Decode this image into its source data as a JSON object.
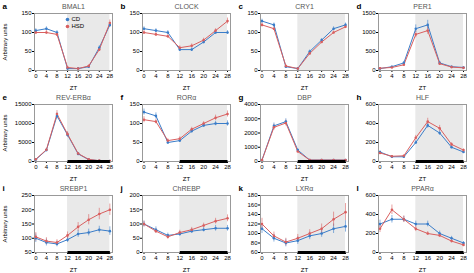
{
  "chart_data": [
    {
      "type": "line",
      "title": "BMAL1",
      "annotations": [
        "a"
      ],
      "xlabel": "ZT",
      "ylabel": "Arbitrary units",
      "x": [
        0,
        4,
        8,
        12,
        16,
        20,
        24,
        28
      ],
      "xlim": [
        -0.5,
        29
      ],
      "xticks": [
        0,
        4,
        8,
        12,
        16,
        20,
        24,
        28
      ],
      "ylim": [
        0,
        150
      ],
      "yticks": [
        0,
        50,
        100,
        150
      ],
      "shade": [
        12,
        28
      ],
      "legend": "upper center",
      "series": [
        {
          "name": "CD",
          "color": "#3a7dc9",
          "marker": "circle",
          "values": [
            105,
            110,
            100,
            5,
            5,
            10,
            60,
            120
          ],
          "error": [
            5,
            5,
            5,
            2,
            2,
            3,
            5,
            7
          ]
        },
        {
          "name": "HSD",
          "color": "#d95f5f",
          "marker": "circle",
          "values": [
            100,
            100,
            95,
            8,
            5,
            12,
            55,
            125
          ],
          "error": [
            5,
            5,
            5,
            2,
            2,
            3,
            5,
            8
          ]
        }
      ]
    },
    {
      "type": "line",
      "title": "CLOCK",
      "annotations": [
        "b"
      ],
      "xlabel": "ZT",
      "x": [
        0,
        4,
        8,
        12,
        16,
        20,
        24,
        28
      ],
      "xlim": [
        -0.5,
        29
      ],
      "xticks": [
        0,
        4,
        8,
        12,
        16,
        20,
        24,
        28
      ],
      "ylim": [
        0,
        150
      ],
      "yticks": [
        0,
        50,
        100,
        150
      ],
      "shade": [
        12,
        28
      ],
      "series": [
        {
          "name": "CD",
          "color": "#3a7dc9",
          "marker": "circle",
          "values": [
            110,
            105,
            100,
            55,
            55,
            75,
            100,
            100
          ],
          "error": [
            5,
            5,
            5,
            5,
            5,
            5,
            5,
            5
          ]
        },
        {
          "name": "HSD",
          "color": "#d95f5f",
          "marker": "circle",
          "values": [
            100,
            95,
            90,
            60,
            65,
            80,
            105,
            130
          ],
          "error": [
            5,
            5,
            5,
            5,
            5,
            5,
            5,
            8
          ]
        }
      ]
    },
    {
      "type": "line",
      "title": "CRY1",
      "annotations": [
        "c"
      ],
      "xlabel": "ZT",
      "x": [
        0,
        4,
        8,
        12,
        16,
        20,
        24,
        28
      ],
      "xlim": [
        -0.5,
        29
      ],
      "xticks": [
        0,
        4,
        8,
        12,
        16,
        20,
        24,
        28
      ],
      "ylim": [
        0,
        150
      ],
      "yticks": [
        0,
        50,
        100,
        150
      ],
      "shade": [
        12,
        28
      ],
      "series": [
        {
          "name": "CD",
          "color": "#3a7dc9",
          "marker": "circle",
          "values": [
            130,
            120,
            10,
            5,
            50,
            80,
            110,
            120
          ],
          "error": [
            5,
            5,
            3,
            2,
            4,
            4,
            5,
            5
          ]
        },
        {
          "name": "HSD",
          "color": "#d95f5f",
          "marker": "circle",
          "values": [
            120,
            110,
            12,
            5,
            45,
            75,
            100,
            115
          ],
          "error": [
            5,
            5,
            3,
            2,
            4,
            4,
            4,
            5
          ]
        }
      ]
    },
    {
      "type": "line",
      "title": "PER1",
      "annotations": [
        "d"
      ],
      "xlabel": "ZT",
      "x": [
        0,
        4,
        8,
        12,
        16,
        20,
        24,
        28
      ],
      "xlim": [
        -0.5,
        29
      ],
      "xticks": [
        0,
        4,
        8,
        12,
        16,
        20,
        24,
        28
      ],
      "ylim": [
        0,
        1500
      ],
      "yticks": [
        0,
        500,
        1000,
        1500
      ],
      "shade": [
        12,
        28
      ],
      "series": [
        {
          "name": "CD",
          "color": "#3a7dc9",
          "marker": "circle",
          "values": [
            50,
            100,
            200,
            1100,
            1200,
            200,
            100,
            80
          ],
          "error": [
            10,
            20,
            40,
            100,
            120,
            40,
            20,
            15
          ]
        },
        {
          "name": "HSD",
          "color": "#d95f5f",
          "marker": "circle",
          "values": [
            60,
            80,
            150,
            950,
            1050,
            180,
            90,
            70
          ],
          "error": [
            10,
            15,
            30,
            90,
            100,
            35,
            15,
            12
          ]
        }
      ]
    },
    {
      "type": "line",
      "title": "REV-ERBα",
      "annotations": [
        "e"
      ],
      "xlabel": "ZT",
      "ylabel": "Arbitrary units",
      "x": [
        0,
        4,
        8,
        12,
        16,
        20,
        24,
        28
      ],
      "xlim": [
        -0.5,
        29
      ],
      "xticks": [
        0,
        4,
        8,
        12,
        16,
        20,
        24,
        28
      ],
      "ylim": [
        0,
        15000
      ],
      "yticks": [
        0,
        5000,
        10000,
        15000
      ],
      "shade": [
        12,
        28
      ],
      "dark_bar": [
        12,
        28
      ],
      "series": [
        {
          "name": "CD",
          "color": "#3a7dc9",
          "marker": "circle",
          "values": [
            500,
            3000,
            12000,
            7000,
            2000,
            500,
            200,
            100
          ],
          "error": [
            100,
            300,
            800,
            600,
            200,
            100,
            50,
            30
          ]
        },
        {
          "name": "HSD",
          "color": "#d95f5f",
          "marker": "circle",
          "values": [
            600,
            3100,
            12500,
            7200,
            2100,
            550,
            220,
            110
          ],
          "error": [
            100,
            300,
            900,
            650,
            200,
            100,
            50,
            30
          ]
        }
      ]
    },
    {
      "type": "line",
      "title": "RORα",
      "annotations": [
        "f"
      ],
      "xlabel": "ZT",
      "x": [
        0,
        4,
        8,
        12,
        16,
        20,
        24,
        28
      ],
      "xlim": [
        -0.5,
        29
      ],
      "xticks": [
        0,
        4,
        8,
        12,
        16,
        20,
        24,
        28
      ],
      "ylim": [
        0,
        150
      ],
      "yticks": [
        0,
        50,
        100,
        150
      ],
      "shade": [
        12,
        28
      ],
      "dark_bar": [
        12,
        28
      ],
      "series": [
        {
          "name": "CD",
          "color": "#3a7dc9",
          "marker": "circle",
          "values": [
            130,
            120,
            50,
            55,
            80,
            95,
            100,
            100
          ],
          "error": [
            8,
            8,
            5,
            5,
            5,
            5,
            6,
            7
          ]
        },
        {
          "name": "HSD",
          "color": "#d95f5f",
          "marker": "circle",
          "values": [
            110,
            105,
            55,
            60,
            85,
            100,
            115,
            125
          ],
          "error": [
            8,
            6,
            5,
            5,
            5,
            5,
            7,
            8
          ]
        }
      ]
    },
    {
      "type": "line",
      "title": "DBP",
      "annotations": [
        "g"
      ],
      "xlabel": "ZT",
      "x": [
        0,
        4,
        8,
        12,
        16,
        20,
        24,
        28
      ],
      "xlim": [
        -0.5,
        29
      ],
      "xticks": [
        0,
        4,
        8,
        12,
        16,
        20,
        24,
        28
      ],
      "ylim": [
        0,
        4000
      ],
      "yticks": [
        0,
        1000,
        2000,
        3000,
        4000
      ],
      "shade": [
        12,
        28
      ],
      "dark_bar": [
        12,
        28
      ],
      "series": [
        {
          "name": "CD",
          "color": "#3a7dc9",
          "marker": "circle",
          "values": [
            100,
            2500,
            2800,
            800,
            100,
            100,
            100,
            100
          ],
          "error": [
            20,
            200,
            200,
            80,
            20,
            20,
            20,
            20
          ]
        },
        {
          "name": "HSD",
          "color": "#d95f5f",
          "marker": "circle",
          "values": [
            100,
            2400,
            2700,
            700,
            100,
            100,
            100,
            100
          ],
          "error": [
            20,
            200,
            200,
            70,
            20,
            20,
            20,
            20
          ]
        }
      ]
    },
    {
      "type": "line",
      "title": "HLF",
      "annotations": [
        "h"
      ],
      "xlabel": "ZT",
      "x": [
        0,
        4,
        8,
        12,
        16,
        20,
        24,
        28
      ],
      "xlim": [
        -0.5,
        29
      ],
      "xticks": [
        0,
        4,
        8,
        12,
        16,
        20,
        24,
        28
      ],
      "ylim": [
        0,
        600
      ],
      "yticks": [
        0,
        200,
        400,
        600
      ],
      "shade": [
        12,
        28
      ],
      "dark_bar": [
        12,
        28
      ],
      "series": [
        {
          "name": "CD",
          "color": "#3a7dc9",
          "marker": "circle",
          "values": [
            100,
            50,
            50,
            200,
            380,
            300,
            150,
            100
          ],
          "error": [
            10,
            5,
            5,
            20,
            30,
            25,
            15,
            10
          ]
        },
        {
          "name": "HSD",
          "color": "#d95f5f",
          "marker": "circle",
          "values": [
            90,
            55,
            60,
            250,
            420,
            350,
            180,
            120
          ],
          "error": [
            10,
            6,
            6,
            25,
            35,
            30,
            18,
            12
          ]
        }
      ]
    },
    {
      "type": "line",
      "title": "SREBP1",
      "annotations": [
        "i"
      ],
      "xlabel": "ZT",
      "ylabel": "Arbitrary units",
      "x": [
        0,
        4,
        8,
        12,
        16,
        20,
        24,
        28
      ],
      "xlim": [
        -0.5,
        29
      ],
      "xticks": [
        0,
        4,
        8,
        12,
        16,
        20,
        24,
        28
      ],
      "ylim": [
        50,
        250
      ],
      "yticks": [
        50,
        100,
        150,
        200,
        250
      ],
      "shade": [
        12,
        28
      ],
      "dark_bar": [
        12,
        28
      ],
      "series": [
        {
          "name": "CD",
          "color": "#3a7dc9",
          "marker": "circle",
          "values": [
            100,
            85,
            80,
            95,
            115,
            120,
            130,
            125
          ],
          "error": [
            15,
            12,
            10,
            10,
            12,
            12,
            12,
            15
          ]
        },
        {
          "name": "HSD",
          "color": "#d95f5f",
          "marker": "circle",
          "values": [
            105,
            90,
            85,
            110,
            140,
            165,
            185,
            200
          ],
          "error": [
            15,
            12,
            10,
            12,
            15,
            18,
            20,
            20
          ]
        }
      ]
    },
    {
      "type": "line",
      "title": "ChREBP",
      "annotations": [
        "j"
      ],
      "xlabel": "ZT",
      "x": [
        0,
        4,
        8,
        12,
        16,
        20,
        24,
        28
      ],
      "xlim": [
        -0.5,
        29
      ],
      "xticks": [
        0,
        4,
        8,
        12,
        16,
        20,
        24,
        28
      ],
      "ylim": [
        0,
        200
      ],
      "yticks": [
        0,
        50,
        100,
        150,
        200
      ],
      "shade": [
        12,
        28
      ],
      "dark_bar": [
        12,
        28
      ],
      "series": [
        {
          "name": "CD",
          "color": "#3a7dc9",
          "marker": "circle",
          "values": [
            100,
            80,
            60,
            65,
            75,
            80,
            85,
            85
          ],
          "error": [
            10,
            10,
            8,
            8,
            8,
            8,
            10,
            10
          ]
        },
        {
          "name": "HSD",
          "color": "#d95f5f",
          "marker": "circle",
          "values": [
            100,
            75,
            55,
            70,
            80,
            95,
            110,
            120
          ],
          "error": [
            10,
            8,
            8,
            8,
            8,
            8,
            10,
            12
          ]
        }
      ]
    },
    {
      "type": "line",
      "title": "LXRα",
      "annotations": [
        "k"
      ],
      "xlabel": "ZT",
      "x": [
        0,
        4,
        8,
        12,
        16,
        20,
        24,
        28
      ],
      "xlim": [
        -0.5,
        29
      ],
      "xticks": [
        0,
        4,
        8,
        12,
        16,
        20,
        24,
        28
      ],
      "ylim": [
        60,
        180
      ],
      "yticks": [
        60,
        80,
        100,
        120,
        140,
        160,
        180
      ],
      "shade": [
        12,
        28
      ],
      "dark_bar": [
        12,
        28
      ],
      "series": [
        {
          "name": "CD",
          "color": "#3a7dc9",
          "marker": "circle",
          "values": [
            110,
            90,
            80,
            85,
            95,
            100,
            110,
            115
          ],
          "error": [
            10,
            8,
            8,
            8,
            8,
            8,
            10,
            12
          ]
        },
        {
          "name": "HSD",
          "color": "#d95f5f",
          "marker": "circle",
          "values": [
            120,
            95,
            82,
            90,
            100,
            110,
            130,
            145
          ],
          "error": [
            12,
            8,
            8,
            8,
            8,
            10,
            15,
            18
          ]
        }
      ]
    },
    {
      "type": "line",
      "title": "PPARα",
      "annotations": [
        "l"
      ],
      "xlabel": "ZT",
      "x": [
        0,
        4,
        8,
        12,
        16,
        20,
        24,
        28
      ],
      "xlim": [
        -0.5,
        29
      ],
      "xticks": [
        0,
        4,
        8,
        12,
        16,
        20,
        24,
        28
      ],
      "ylim": [
        0,
        600
      ],
      "yticks": [
        0,
        200,
        400,
        600
      ],
      "shade": [
        12,
        28
      ],
      "dark_bar": [
        12,
        28
      ],
      "series": [
        {
          "name": "CD",
          "color": "#3a7dc9",
          "marker": "circle",
          "values": [
            300,
            350,
            350,
            300,
            300,
            200,
            150,
            100
          ],
          "error": [
            40,
            40,
            30,
            30,
            30,
            25,
            20,
            15
          ]
        },
        {
          "name": "HSD",
          "color": "#d95f5f",
          "marker": "circle",
          "values": [
            250,
            450,
            350,
            250,
            200,
            180,
            120,
            80
          ],
          "error": [
            40,
            50,
            35,
            30,
            20,
            20,
            15,
            12
          ]
        }
      ]
    }
  ]
}
